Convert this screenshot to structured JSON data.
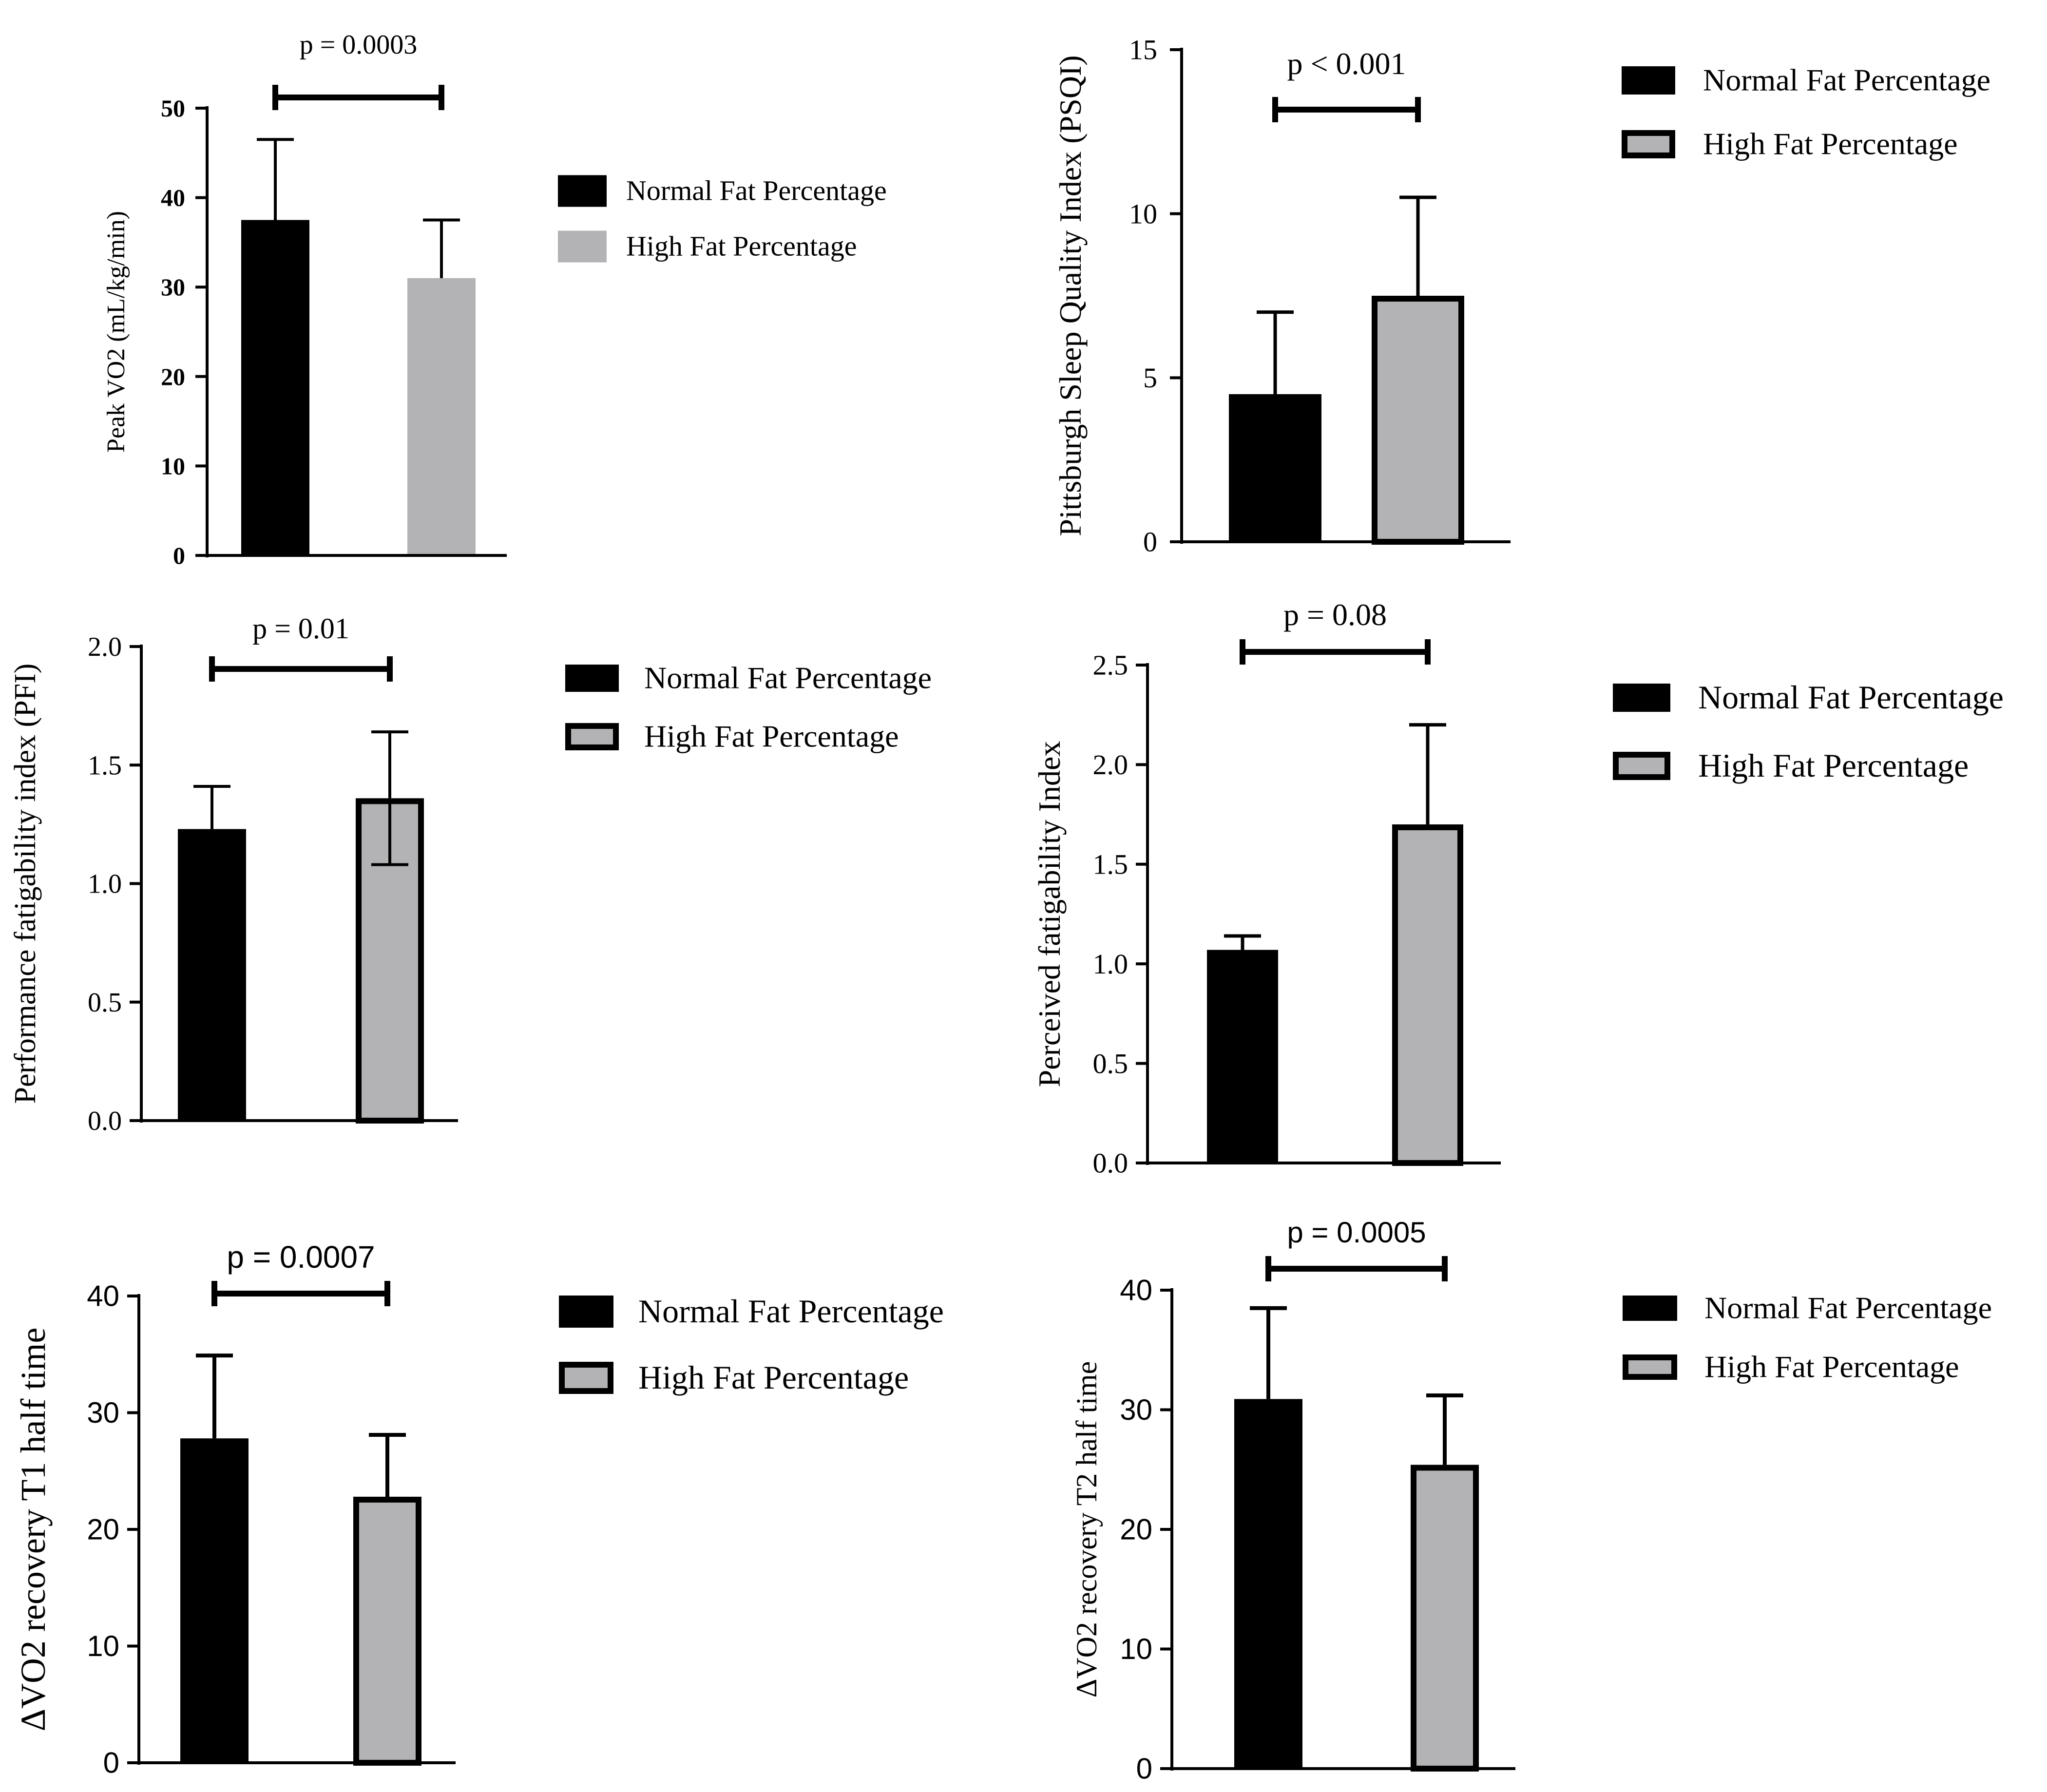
{
  "figure_title": "Six bar charts comparing Normal vs High Fat Percentage groups",
  "colors": {
    "normal": "#000000",
    "high": "#b3b3b5",
    "axis": "#000000",
    "background": "#ffffff"
  },
  "chart_data": [
    {
      "id": "peak-vo2",
      "type": "bar",
      "title": "",
      "xlabel": "",
      "ylabel": "Peak VO2 (mL/kg/min)",
      "categories": [
        "Normal Fat Percentage",
        "High Fat Percentage"
      ],
      "values": [
        37.5,
        31
      ],
      "errors": [
        9,
        6.5
      ],
      "ylim": [
        0,
        50
      ],
      "yticks": [
        "0",
        "10",
        "20",
        "30",
        "40",
        "50"
      ],
      "significance": "p = 0.0003",
      "legend": [
        "Normal Fat Percentage",
        "High Fat Percentage"
      ],
      "legend_position": "right"
    },
    {
      "id": "psqi",
      "type": "bar",
      "title": "",
      "xlabel": "",
      "ylabel": "Pittsburgh Sleep Quality Index (PSQI)",
      "categories": [
        "Normal Fat Percentage",
        "High Fat Percentage"
      ],
      "values": [
        4.5,
        7.5
      ],
      "errors": [
        2.5,
        3
      ],
      "ylim": [
        0,
        15
      ],
      "yticks": [
        "0",
        "5",
        "10",
        "15"
      ],
      "significance": "p < 0.001",
      "legend": [
        "Normal Fat Percentage",
        "High Fat Percentage"
      ],
      "legend_position": "right"
    },
    {
      "id": "pfi",
      "type": "bar",
      "title": "",
      "xlabel": "",
      "ylabel": "Performance fatigability index (PFI)",
      "categories": [
        "Normal Fat Percentage",
        "High Fat Percentage"
      ],
      "values": [
        1.23,
        1.36
      ],
      "errors": [
        0.18,
        0.28
      ],
      "ylim": [
        0,
        2.0
      ],
      "yticks": [
        "0.0",
        "0.5",
        "1.0",
        "1.5",
        "2.0"
      ],
      "significance": "p = 0.01",
      "legend": [
        "Normal Fat Percentage",
        "High Fat Percentage"
      ],
      "legend_position": "right"
    },
    {
      "id": "perceived-fatigability",
      "type": "bar",
      "title": "",
      "xlabel": "",
      "ylabel": "Perceived fatigability Index",
      "categories": [
        "Normal Fat Percentage",
        "High Fat Percentage"
      ],
      "values": [
        1.07,
        1.7
      ],
      "errors": [
        0.07,
        0.5
      ],
      "ylim": [
        0,
        2.5
      ],
      "yticks": [
        "0.0",
        "0.5",
        "1.0",
        "1.5",
        "2.0",
        "2.5"
      ],
      "significance": "p = 0.08",
      "legend": [
        "Normal Fat Percentage",
        "High Fat Percentage"
      ],
      "legend_position": "right"
    },
    {
      "id": "t1-half-time",
      "type": "bar",
      "title": "",
      "xlabel": "",
      "ylabel": "ΔVO2 recovery T1 half time",
      "categories": [
        "Normal Fat Percentage",
        "High Fat Percentage"
      ],
      "values": [
        27.8,
        22.8
      ],
      "errors": [
        7.1,
        5.3
      ],
      "ylim": [
        0,
        40
      ],
      "yticks": [
        "0",
        "10",
        "20",
        "30",
        "40"
      ],
      "significance": "p = 0.0007",
      "legend": [
        "Normal Fat Percentage",
        "High Fat Percentage"
      ],
      "legend_position": "right"
    },
    {
      "id": "t2-half-time",
      "type": "bar",
      "title": "",
      "xlabel": "",
      "ylabel": "ΔVO2 recovery T2 half time",
      "categories": [
        "Normal Fat Percentage",
        "High Fat Percentage"
      ],
      "values": [
        30.9,
        25.4
      ],
      "errors": [
        7.6,
        5.8
      ],
      "ylim": [
        0,
        40
      ],
      "yticks": [
        "0",
        "10",
        "20",
        "30",
        "40"
      ],
      "significance": "p = 0.0005",
      "legend": [
        "Normal Fat Percentage",
        "High Fat Percentage"
      ],
      "legend_position": "right"
    }
  ]
}
